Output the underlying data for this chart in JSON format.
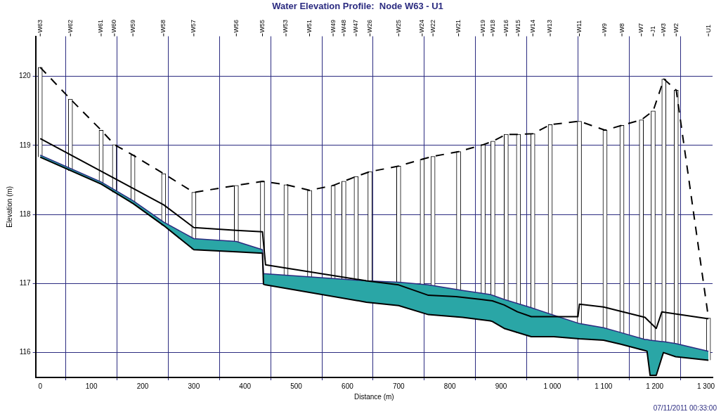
{
  "chart_data": {
    "type": "line",
    "title": "Water Elevation Profile:  Node W63 - U1",
    "xlabel": "Distance (m)",
    "ylabel": "Elevation (m)",
    "annotations": [
      "W63",
      "W62",
      "W61",
      "W60",
      "W59",
      "W58",
      "W57",
      "W56",
      "W55",
      "W53",
      "W51",
      "W49",
      "W48",
      "W47",
      "W26",
      "W25",
      "W24",
      "W22",
      "W21",
      "W19",
      "W18",
      "W16",
      "W15",
      "W14",
      "W13",
      "W11",
      "W9",
      "W8",
      "W7",
      "J1",
      "W3",
      "W2",
      "U1",
      "07/11/2011 00:33:00"
    ],
    "xlim": [
      -9,
      1313
    ],
    "ylim": [
      115.64,
      120.58
    ],
    "xticks": [
      0,
      100,
      200,
      300,
      400,
      500,
      600,
      700,
      800,
      900,
      {
        "value": 1000,
        "label": "1 000"
      },
      {
        "value": 1100,
        "label": "1 100"
      },
      {
        "value": 1200,
        "label": "1 200"
      },
      {
        "value": 1300,
        "label": "1 300"
      }
    ],
    "yticks": [
      116,
      117,
      118,
      119,
      120
    ],
    "grid": true,
    "legend": false,
    "marker": "none",
    "series": [
      {
        "type": "bar",
        "color": "#ffffff",
        "x": [
          0,
          59,
          119,
          145,
          181,
          241,
          300,
          383,
          434,
          480,
          526,
          572,
          593,
          617,
          644,
          700,
          746,
          767,
          817,
          865,
          884,
          910,
          934,
          962,
          996,
          1053,
          1103,
          1136,
          1174,
          1197,
          1218,
          1242,
          1305
        ],
        "base": [
          118.83,
          118.63,
          118.44,
          118.32,
          118.16,
          117.84,
          117.49,
          117.46,
          117.44,
          116.93,
          116.87,
          116.81,
          116.79,
          116.76,
          116.72,
          116.68,
          116.58,
          116.54,
          116.51,
          116.47,
          116.45,
          116.34,
          116.28,
          116.23,
          116.23,
          116.2,
          116.17,
          116.12,
          116.04,
          115.67,
          116.0,
          115.94,
          115.89
        ],
        "values": [
          1.3,
          1.04,
          0.78,
          0.69,
          0.7,
          0.75,
          0.83,
          0.96,
          1.04,
          1.5,
          1.48,
          1.61,
          1.69,
          1.79,
          1.9,
          2.02,
          2.22,
          2.3,
          2.4,
          2.54,
          2.61,
          2.82,
          2.88,
          2.94,
          3.07,
          3.15,
          3.05,
          3.17,
          3.33,
          3.83,
          3.96,
          3.86,
          0.61
        ]
      },
      {
        "color": "#000000",
        "x": [
          0,
          119,
          181,
          241,
          300,
          383,
          434,
          436,
          440,
          637,
          700,
          758,
          825,
          879,
          883,
          906,
          959,
          1003,
          1053,
          1100,
          1134,
          1181,
          1185,
          1191,
          1203,
          1214,
          1217,
          1241,
          1305
        ],
        "values": [
          118.83,
          118.44,
          118.16,
          117.84,
          117.49,
          117.46,
          117.44,
          116.99,
          116.98,
          116.73,
          116.68,
          116.55,
          116.51,
          116.46,
          116.45,
          116.35,
          116.23,
          116.23,
          116.2,
          116.18,
          116.12,
          116.03,
          116.02,
          115.67,
          115.67,
          115.93,
          116.0,
          115.94,
          115.89
        ]
      },
      {
        "type": "area",
        "color": "#2aa6a6",
        "x": [
          0,
          119,
          181,
          241,
          300,
          383,
          434,
          436,
          440,
          637,
          700,
          758,
          825,
          879,
          883,
          906,
          959,
          1003,
          1053,
          1100,
          1134,
          1181,
          1185,
          1191,
          1203,
          1214,
          1217,
          1241,
          1305
        ],
        "values": [
          118.86,
          118.47,
          118.2,
          117.89,
          117.65,
          117.61,
          117.49,
          117.14,
          117.14,
          117.04,
          117.02,
          116.98,
          116.9,
          116.84,
          116.83,
          116.77,
          116.65,
          116.54,
          116.42,
          116.36,
          116.29,
          116.19,
          116.19,
          116.18,
          116.17,
          116.16,
          116.16,
          116.13,
          116.02
        ]
      },
      {
        "color": "#000000",
        "x": [
          0,
          241,
          300,
          383,
          434,
          440,
          637,
          700,
          758,
          812,
          861,
          883,
          906,
          932,
          959,
          1050,
          1053,
          1100,
          1181,
          1203,
          1214,
          1305
        ],
        "values": [
          119.1,
          118.14,
          117.81,
          117.77,
          117.75,
          117.27,
          117.04,
          116.98,
          116.83,
          116.81,
          116.77,
          116.75,
          116.69,
          116.59,
          116.52,
          116.52,
          116.7,
          116.66,
          116.51,
          116.35,
          116.59,
          116.49
        ]
      },
      {
        "color": "#000000",
        "line_style": "dashed",
        "x": [
          0,
          59,
          119,
          145,
          181,
          241,
          300,
          383,
          434,
          480,
          526,
          572,
          593,
          617,
          644,
          700,
          746,
          767,
          817,
          865,
          884,
          910,
          934,
          962,
          996,
          1053,
          1103,
          1136,
          1174,
          1197,
          1218,
          1242,
          1305
        ],
        "values": [
          120.13,
          119.67,
          119.22,
          119.01,
          118.86,
          118.59,
          118.32,
          118.42,
          118.48,
          118.43,
          118.35,
          118.42,
          118.48,
          118.55,
          118.62,
          118.7,
          118.8,
          118.84,
          118.91,
          119.01,
          119.06,
          119.16,
          119.16,
          119.17,
          119.3,
          119.35,
          119.22,
          119.29,
          119.37,
          119.5,
          119.96,
          119.8,
          116.5
        ]
      }
    ]
  }
}
